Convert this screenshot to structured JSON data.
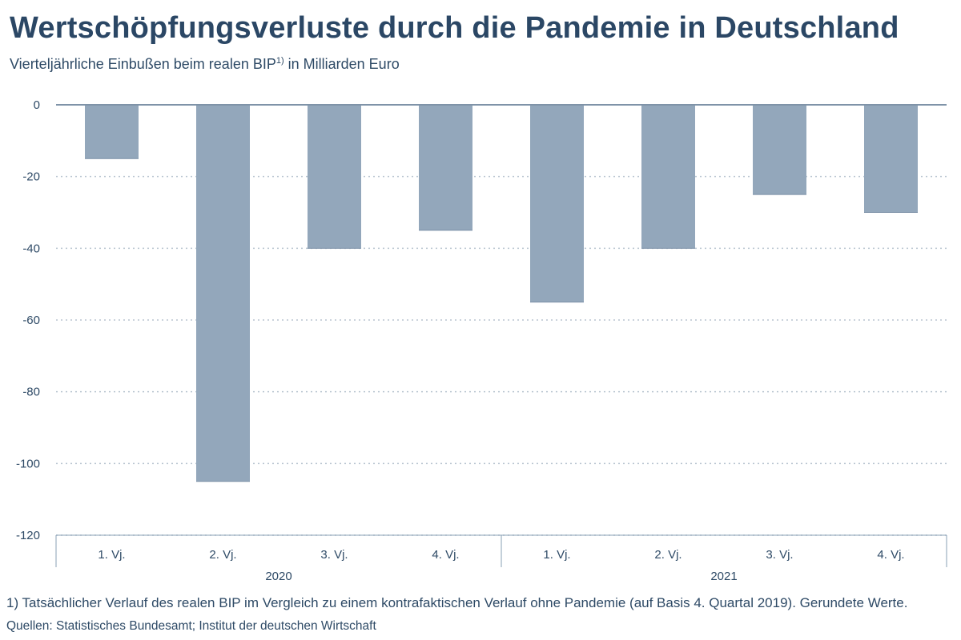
{
  "title": "Wertschöpfungsverluste durch die Pandemie in Deutschland",
  "subtitle": "Vierteljährliche Einbußen beim realen BIP",
  "subtitle_sup": "1)",
  "subtitle_tail": " in Milliarden Euro",
  "footnote": "1) Tatsächlicher Verlauf des realen BIP im Vergleich zu einem kontrafaktischen Verlauf ohne Pandemie (auf Basis 4. Quartal 2019). Gerundete Werte.",
  "source": "Quellen: Statistisches Bundesamt; Institut der deutschen Wirtschaft",
  "colors": {
    "bar": "#93a7bb",
    "bar_edge": "#7a8fa6",
    "grid": "#b8c4d0",
    "axis": "#8aa0b5",
    "zero_line": "#7f93a8"
  },
  "chart_data": {
    "type": "bar",
    "categories": [
      "1. Vj.",
      "2. Vj.",
      "3. Vj.",
      "4. Vj.",
      "1. Vj.",
      "2. Vj.",
      "3. Vj.",
      "4. Vj."
    ],
    "groups": [
      {
        "label": "2020",
        "start": 0,
        "end": 3
      },
      {
        "label": "2021",
        "start": 4,
        "end": 7
      }
    ],
    "series": [
      {
        "values": [
          -15,
          -105,
          -40,
          -35,
          -55,
          -40,
          -25,
          -30
        ]
      }
    ],
    "xlabel": "",
    "ylabel": "",
    "ylim": [
      -120,
      0
    ],
    "yticks": [
      0,
      -20,
      -40,
      -60,
      -80,
      -100,
      -120
    ],
    "grid": true,
    "legend": "none"
  }
}
